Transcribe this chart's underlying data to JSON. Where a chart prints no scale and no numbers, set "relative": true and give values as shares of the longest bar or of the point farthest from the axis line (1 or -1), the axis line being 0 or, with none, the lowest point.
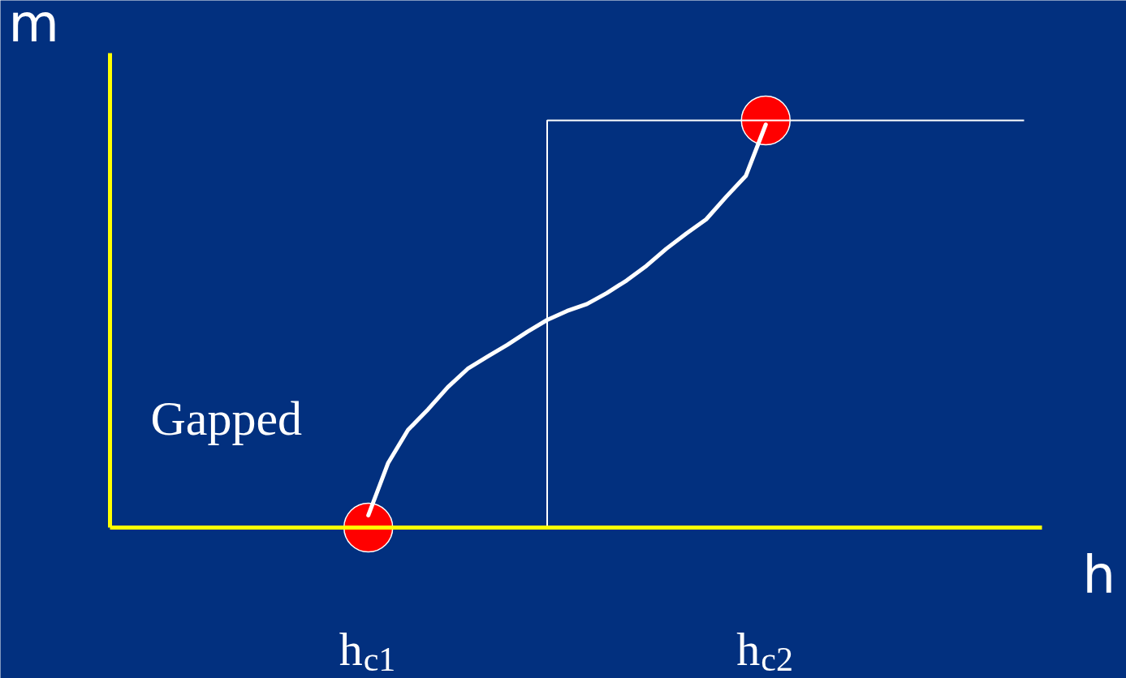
{
  "chart_data": {
    "type": "line",
    "relative": true,
    "xlabel": "h",
    "ylabel": "m",
    "annotations": [
      "Gapped"
    ],
    "categories": [
      null,
      null,
      null,
      null,
      null,
      null,
      null,
      null,
      null,
      null,
      null,
      null,
      null,
      "h$_{c1}$",
      null,
      null,
      null,
      null,
      null,
      null,
      null,
      null,
      null,
      null,
      null,
      null,
      null,
      null,
      null,
      null,
      null,
      null,
      null,
      "h$_{c2}$",
      null,
      null,
      null,
      null,
      null,
      null,
      null,
      null,
      null,
      null,
      null,
      null,
      null
    ],
    "grid": false,
    "line_style": "solid",
    "series": [
      {
        "color": "#ffffff",
        "values": [
          null,
          null,
          null,
          null,
          null,
          null,
          null,
          null,
          null,
          null,
          null,
          null,
          null,
          0.03,
          0.159,
          0.24,
          0.29,
          0.345,
          0.39,
          0.42,
          0.449,
          0.481,
          0.51,
          0.532,
          0.549,
          0.576,
          0.607,
          0.643,
          0.685,
          0.722,
          0.757,
          0.812,
          0.864,
          0.99,
          null,
          null,
          null,
          null,
          null,
          null,
          null,
          null,
          null,
          null,
          null,
          null,
          null
        ]
      },
      {
        "type": "step",
        "color": "#ffffff",
        "values": [
          null,
          null,
          null,
          null,
          null,
          null,
          null,
          null,
          null,
          null,
          null,
          null,
          null,
          null,
          null,
          null,
          null,
          null,
          null,
          null,
          null,
          0,
          1,
          1,
          1,
          1,
          1,
          1,
          1,
          1,
          1,
          1,
          1,
          1,
          1,
          1,
          1,
          1,
          1,
          1,
          1,
          1,
          1,
          1,
          1,
          1,
          1
        ]
      },
      {
        "type": "scatter",
        "marker": "circle",
        "color": "#ff0000",
        "values": [
          null,
          null,
          null,
          null,
          null,
          null,
          null,
          null,
          null,
          null,
          null,
          null,
          null,
          0,
          null,
          null,
          null,
          null,
          null,
          null,
          null,
          null,
          null,
          null,
          null,
          null,
          null,
          null,
          null,
          null,
          null,
          null,
          null,
          1,
          null,
          null,
          null,
          null,
          null,
          null,
          null,
          null,
          null,
          null,
          null,
          null,
          null
        ]
      }
    ]
  }
}
